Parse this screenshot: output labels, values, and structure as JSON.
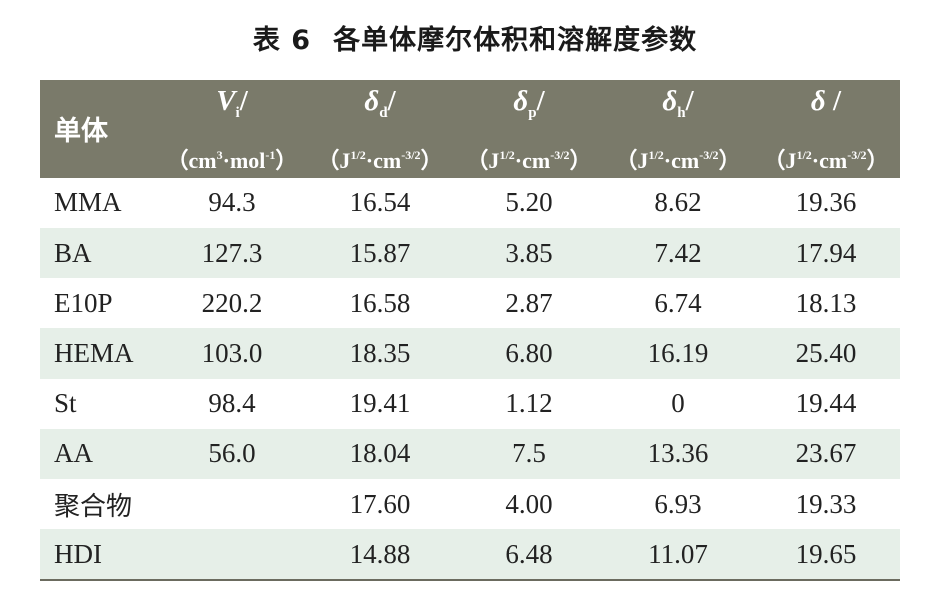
{
  "caption": {
    "number": "表 6",
    "title": "各单体摩尔体积和溶解度参数"
  },
  "header": {
    "first": "单体",
    "columns": [
      {
        "symbol": "V",
        "sub": "i",
        "slash": "/",
        "unit_open": "（cm",
        "unit_sup1": "3",
        "unit_mid": "·mol",
        "unit_sup2": "-1",
        "unit_close": "）"
      },
      {
        "symbol": "δ",
        "sub": "d",
        "slash": "/",
        "unit_open": "（J",
        "unit_sup1": "1/2",
        "unit_mid": "·cm",
        "unit_sup2": "-3/2",
        "unit_close": "）"
      },
      {
        "symbol": "δ",
        "sub": "p",
        "slash": "/",
        "unit_open": "（J",
        "unit_sup1": "1/2",
        "unit_mid": "·cm",
        "unit_sup2": "-3/2",
        "unit_close": "）"
      },
      {
        "symbol": "δ",
        "sub": "h",
        "slash": "/",
        "unit_open": "（J",
        "unit_sup1": "1/2",
        "unit_mid": "·cm",
        "unit_sup2": "-3/2",
        "unit_close": "）"
      },
      {
        "symbol": "δ",
        "sub": "",
        "slash": " /",
        "unit_open": "（J",
        "unit_sup1": "1/2",
        "unit_mid": "·cm",
        "unit_sup2": "-3/2",
        "unit_close": "）"
      }
    ]
  },
  "rows": [
    {
      "name": "MMA",
      "vi": "94.3",
      "dd": "16.54",
      "dp": "5.20",
      "dh": "8.62",
      "d": "19.36"
    },
    {
      "name": "BA",
      "vi": "127.3",
      "dd": "15.87",
      "dp": "3.85",
      "dh": "7.42",
      "d": "17.94"
    },
    {
      "name": "E10P",
      "vi": "220.2",
      "dd": "16.58",
      "dp": "2.87",
      "dh": "6.74",
      "d": "18.13"
    },
    {
      "name": "HEMA",
      "vi": "103.0",
      "dd": "18.35",
      "dp": "6.80",
      "dh": "16.19",
      "d": "25.40"
    },
    {
      "name": "St",
      "vi": "98.4",
      "dd": "19.41",
      "dp": "1.12",
      "dh": "0",
      "d": "19.44"
    },
    {
      "name": "AA",
      "vi": "56.0",
      "dd": "18.04",
      "dp": "7.5",
      "dh": "13.36",
      "d": "23.67"
    },
    {
      "name": "聚合物",
      "vi": "",
      "dd": "17.60",
      "dp": "4.00",
      "dh": "6.93",
      "d": "19.33"
    },
    {
      "name": "HDI",
      "vi": "",
      "dd": "14.88",
      "dp": "6.48",
      "dh": "11.07",
      "d": "19.65"
    }
  ]
}
